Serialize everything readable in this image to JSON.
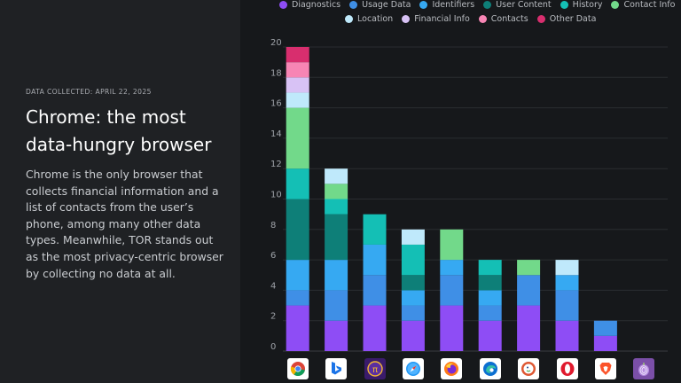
{
  "header": {
    "date_line": "DATA COLLECTED: APRIL 22, 2025",
    "title": "Chrome: the most data-hungry browser",
    "description": "Chrome is the only browser that collects financial information and a list of contacts from the user’s phone, among many other data types. Meanwhile, TOR stands out as the most privacy-centric browser by collecting no data at all."
  },
  "chart_data": {
    "type": "bar",
    "stacked": true,
    "title": "",
    "xlabel": "",
    "ylabel": "",
    "ylim": [
      0,
      20
    ],
    "yticks": [
      0,
      2,
      4,
      6,
      8,
      10,
      12,
      14,
      16,
      18,
      20
    ],
    "grid": true,
    "legend_position": "top",
    "categories": [
      "Chrome",
      "Bing",
      "Pi",
      "Safari",
      "Firefox",
      "Edge",
      "DuckDuckGo",
      "Opera",
      "Brave",
      "Tor"
    ],
    "category_icons": [
      "chrome-icon",
      "bing-icon",
      "pi-browser-icon",
      "safari-icon",
      "firefox-icon",
      "edge-icon",
      "duckduckgo-icon",
      "opera-icon",
      "brave-icon",
      "tor-icon"
    ],
    "series": [
      {
        "name": "Diagnostics",
        "color": "#8e4df5",
        "values": [
          3,
          2,
          3,
          2,
          3,
          2,
          3,
          2,
          1,
          0
        ]
      },
      {
        "name": "Usage Data",
        "color": "#3f8fe6",
        "values": [
          1,
          2,
          2,
          1,
          2,
          1,
          2,
          2,
          1,
          0
        ]
      },
      {
        "name": "Identifiers",
        "color": "#36a9f2",
        "values": [
          2,
          2,
          2,
          1,
          1,
          1,
          0,
          1,
          0,
          0
        ]
      },
      {
        "name": "User Content",
        "color": "#0e7f78",
        "values": [
          4,
          3,
          0,
          1,
          0,
          1,
          0,
          0,
          0,
          0
        ]
      },
      {
        "name": "History",
        "color": "#14bfb5",
        "values": [
          2,
          1,
          2,
          2,
          0,
          1,
          0,
          0,
          0,
          0
        ]
      },
      {
        "name": "Contact Info",
        "color": "#72d98a",
        "values": [
          4,
          1,
          0,
          0,
          2,
          0,
          1,
          0,
          0,
          0
        ]
      },
      {
        "name": "Location",
        "color": "#bfe9fb",
        "values": [
          1,
          1,
          0,
          1,
          0,
          0,
          0,
          1,
          0,
          0
        ]
      },
      {
        "name": "Financial Info",
        "color": "#d8c2f5",
        "values": [
          1,
          0,
          0,
          0,
          0,
          0,
          0,
          0,
          0,
          0
        ]
      },
      {
        "name": "Contacts",
        "color": "#f785b4",
        "values": [
          1,
          0,
          0,
          0,
          0,
          0,
          0,
          0,
          0,
          0
        ]
      },
      {
        "name": "Other Data",
        "color": "#d82e6e",
        "values": [
          1,
          0,
          0,
          0,
          0,
          0,
          0,
          0,
          0,
          0
        ]
      }
    ]
  }
}
